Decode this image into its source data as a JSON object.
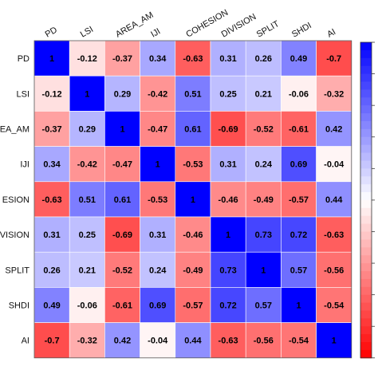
{
  "chart_data": {
    "type": "heatmap",
    "title": "",
    "variables": [
      "PD",
      "LSI",
      "AREA_AM",
      "IJI",
      "COHESION",
      "DIVISION",
      "SPLIT",
      "SHDI",
      "AI"
    ],
    "row_labels": [
      "PD",
      "LSI",
      "EA_AM",
      "IJI",
      "ESION",
      "VISION",
      "SPLIT",
      "SHDI",
      "AI"
    ],
    "col_labels": [
      "PD",
      "LSI",
      "AREA_AM",
      "IJI",
      "COHESION",
      "DIVISION",
      "SPLIT",
      "SHDI",
      "AI"
    ],
    "matrix": [
      [
        1,
        -0.12,
        -0.37,
        0.34,
        -0.63,
        0.31,
        0.26,
        0.49,
        -0.7
      ],
      [
        -0.12,
        1,
        0.29,
        -0.42,
        0.51,
        0.25,
        0.21,
        -0.06,
        -0.32
      ],
      [
        -0.37,
        0.29,
        1,
        -0.47,
        0.61,
        -0.69,
        -0.52,
        -0.61,
        0.42
      ],
      [
        0.34,
        -0.42,
        -0.47,
        1,
        -0.53,
        0.31,
        0.24,
        0.69,
        -0.04
      ],
      [
        -0.63,
        0.51,
        0.61,
        -0.53,
        1,
        -0.46,
        -0.49,
        -0.57,
        0.44
      ],
      [
        0.31,
        0.25,
        -0.69,
        0.31,
        -0.46,
        1,
        0.73,
        0.72,
        -0.63
      ],
      [
        0.26,
        0.21,
        -0.52,
        0.24,
        -0.49,
        0.73,
        1,
        0.57,
        -0.56
      ],
      [
        0.49,
        -0.06,
        -0.61,
        0.69,
        -0.57,
        0.72,
        0.57,
        1,
        -0.54
      ],
      [
        -0.7,
        -0.32,
        0.42,
        -0.04,
        0.44,
        -0.63,
        -0.56,
        -0.54,
        1
      ]
    ],
    "value_range": [
      -1,
      1
    ],
    "colorscale": {
      "negative": "#ff0000",
      "zero": "#ffffff",
      "positive": "#0000ff"
    },
    "colorbar": {
      "visible": true,
      "placement": "right"
    }
  }
}
